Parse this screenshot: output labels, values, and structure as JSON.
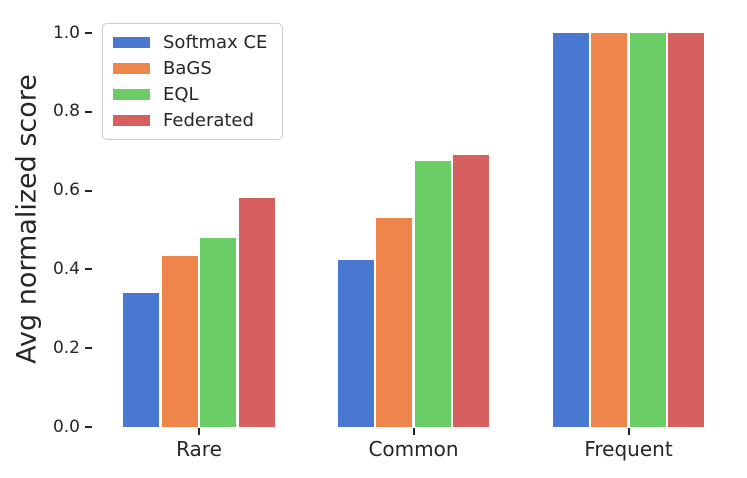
{
  "chart_data": {
    "type": "bar",
    "title": "",
    "ylabel": "Avg normalized score",
    "xlabel": "",
    "categories": [
      "Rare",
      "Common",
      "Frequent"
    ],
    "series": [
      {
        "name": "Softmax CE",
        "color": "#4878d0",
        "values": [
          0.34,
          0.425,
          1.0
        ]
      },
      {
        "name": "BaGS",
        "color": "#ee854a",
        "values": [
          0.435,
          0.53,
          1.0
        ]
      },
      {
        "name": "EQL",
        "color": "#6acc64",
        "values": [
          0.48,
          0.675,
          1.0
        ]
      },
      {
        "name": "Federated",
        "color": "#d65f5f",
        "values": [
          0.58,
          0.69,
          1.0
        ]
      }
    ],
    "yticks": [
      "0.0",
      "0.2",
      "0.4",
      "0.6",
      "0.8",
      "1.0"
    ],
    "ylim": [
      0.0,
      1.05
    ],
    "grid": false,
    "legend_position": "upper-left",
    "text_color": "#262626"
  }
}
